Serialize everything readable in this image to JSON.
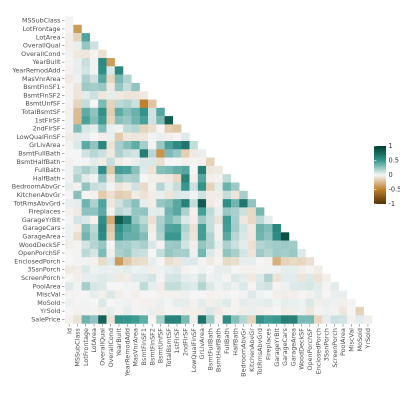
{
  "chart_data": {
    "type": "heatmap",
    "title": "",
    "xlabel": "",
    "ylabel": "",
    "variables": [
      "Id",
      "MSSubClass",
      "LotFrontage",
      "LotArea",
      "OverallQual",
      "OverallCond",
      "YearBuilt",
      "YearRemodAdd",
      "MasVnrArea",
      "BsmtFinSF1",
      "BsmtFinSF2",
      "BsmtUnfSF",
      "TotalBsmtSF",
      "1stFlrSF",
      "2ndFlrSF",
      "LowQualFinSF",
      "GrLivArea",
      "BsmtFullBath",
      "BsmtHalfBath",
      "FullBath",
      "HalfBath",
      "BedroomAbvGr",
      "KitchenAbvGr",
      "TotRmsAbvGrd",
      "Fireplaces",
      "GarageYrBlt",
      "GarageCars",
      "GarageArea",
      "WoodDeckSF",
      "OpenPorchSF",
      "EnclosedPorch",
      "3SsnPorch",
      "ScreenPorch",
      "PoolArea",
      "MiscVal",
      "MoSold",
      "YrSold",
      "SalePrice"
    ],
    "rows_shown": [
      "MSSubClass",
      "LotFrontage",
      "LotArea",
      "OverallQual",
      "OverallCond",
      "YearBuilt",
      "YearRemodAdd",
      "MasVnrArea",
      "BsmtFinSF1",
      "BsmtFinSF2",
      "BsmtUnfSF",
      "TotalBsmtSF",
      "1stFlrSF",
      "2ndFlrSF",
      "LowQualFinSF",
      "GrLivArea",
      "BsmtFullBath",
      "BsmtHalfBath",
      "FullBath",
      "HalfBath",
      "BedroomAbvGr",
      "KitchenAbvGr",
      "TotRmsAbvGrd",
      "Fireplaces",
      "GarageYrBlt",
      "GarageCars",
      "GarageArea",
      "WoodDeckSF",
      "OpenPorchSF",
      "EnclosedPorch",
      "3SsnPorch",
      "ScreenPorch",
      "PoolArea",
      "MiscVal",
      "MoSold",
      "YrSold",
      "SalePrice"
    ],
    "columns_shown": [
      "Id",
      "MSSubClass",
      "LotFrontage",
      "LotArea",
      "OverallQual",
      "OverallCond",
      "YearBuilt",
      "YearRemodAdd",
      "MasVnrArea",
      "BsmtFinSF1",
      "BsmtFinSF2",
      "BsmtUnfSF",
      "TotalBsmtSF",
      "1stFlrSF",
      "2ndFlrSF",
      "LowQualFinSF",
      "GrLivArea",
      "BsmtFullBath",
      "BsmtHalfBath",
      "FullBath",
      "HalfBath",
      "BedroomAbvGr",
      "KitchenAbvGr",
      "TotRmsAbvGrd",
      "Fireplaces",
      "GarageYrBlt",
      "GarageCars",
      "GarageArea",
      "WoodDeckSF",
      "OpenPorchSF",
      "EnclosedPorch",
      "3SsnPorch",
      "ScreenPorch",
      "PoolArea",
      "MiscVal",
      "MoSold",
      "YrSold"
    ],
    "value_range": [
      -1,
      1
    ],
    "legend": {
      "position": "right",
      "ticks": [
        "-1",
        "-0.5",
        "0",
        "0.5",
        "1"
      ]
    },
    "colors": {
      "neg1": "#543005",
      "neg05": "#bf812d",
      "zero": "#f5f5f5",
      "pos05": "#35978f",
      "pos1": "#003c30",
      "background": "#ffffff"
    },
    "grid": false,
    "correlations": [
      [
        -0.01
      ],
      [
        -0.01,
        -0.39
      ],
      [
        -0.03,
        -0.14,
        0.43
      ],
      [
        -0.03,
        0.03,
        0.25,
        0.11
      ],
      [
        0.01,
        -0.06,
        -0.06,
        -0.01,
        -0.09
      ],
      [
        -0.01,
        0.03,
        0.12,
        0.01,
        0.57,
        -0.38
      ],
      [
        -0.02,
        0.04,
        0.09,
        0.01,
        0.55,
        0.07,
        0.59
      ],
      [
        -0.05,
        0.02,
        0.19,
        0.1,
        0.41,
        -0.13,
        0.32,
        0.18
      ],
      [
        -0.01,
        -0.07,
        0.23,
        0.21,
        0.24,
        -0.05,
        0.25,
        0.13,
        0.26
      ],
      [
        -0.01,
        -0.07,
        0.05,
        0.11,
        -0.06,
        0.04,
        -0.05,
        -0.07,
        -0.07,
        -0.05
      ],
      [
        -0.01,
        -0.14,
        0.13,
        -0.0,
        0.31,
        -0.14,
        0.15,
        0.18,
        0.11,
        -0.5,
        -0.21
      ],
      [
        -0.02,
        -0.24,
        0.39,
        0.26,
        0.54,
        -0.17,
        0.39,
        0.29,
        0.36,
        0.52,
        0.1,
        0.42
      ],
      [
        0.01,
        -0.25,
        0.45,
        0.3,
        0.48,
        -0.14,
        0.28,
        0.24,
        0.34,
        0.45,
        0.1,
        0.32,
        0.82
      ],
      [
        0.01,
        0.31,
        0.08,
        0.05,
        0.3,
        0.03,
        0.01,
        0.14,
        0.17,
        -0.14,
        -0.1,
        0.0,
        -0.17,
        -0.2
      ],
      [
        -0.04,
        0.05,
        0.04,
        0.0,
        -0.03,
        0.03,
        -0.18,
        -0.06,
        -0.07,
        -0.06,
        0.01,
        0.03,
        -0.03,
        -0.01,
        0.06
      ],
      [
        0.01,
        0.07,
        0.4,
        0.26,
        0.59,
        -0.08,
        0.2,
        0.29,
        0.39,
        0.21,
        -0.01,
        0.24,
        0.45,
        0.57,
        0.69,
        0.13
      ],
      [
        0.0,
        0.0,
        0.1,
        0.16,
        0.11,
        -0.05,
        0.19,
        0.12,
        0.09,
        0.65,
        0.16,
        -0.42,
        0.31,
        0.24,
        -0.17,
        -0.05,
        0.03
      ],
      [
        -0.02,
        0.0,
        -0.01,
        0.05,
        -0.04,
        0.12,
        -0.04,
        -0.01,
        0.03,
        0.07,
        0.07,
        -0.1,
        0.0,
        0.0,
        -0.02,
        -0.01,
        -0.02,
        -0.15
      ],
      [
        0.01,
        0.13,
        0.2,
        0.13,
        0.55,
        -0.19,
        0.47,
        0.44,
        0.28,
        0.06,
        -0.08,
        0.29,
        0.32,
        0.38,
        0.42,
        -0.0,
        0.63,
        -0.06,
        -0.05
      ],
      [
        0.01,
        0.18,
        0.05,
        0.01,
        0.27,
        -0.06,
        0.24,
        0.18,
        0.2,
        0.0,
        -0.03,
        -0.04,
        -0.05,
        -0.12,
        0.61,
        -0.03,
        0.42,
        -0.03,
        -0.01,
        0.14
      ],
      [
        0.04,
        -0.02,
        0.26,
        0.12,
        0.1,
        0.01,
        -0.07,
        -0.04,
        0.1,
        -0.11,
        -0.02,
        0.17,
        0.05,
        0.13,
        0.5,
        0.11,
        0.52,
        -0.15,
        0.05,
        0.36,
        0.23
      ],
      [
        0.0,
        0.28,
        -0.01,
        -0.02,
        -0.18,
        -0.09,
        -0.17,
        -0.15,
        -0.04,
        -0.08,
        -0.04,
        0.03,
        -0.07,
        0.07,
        0.06,
        0.01,
        0.1,
        -0.04,
        -0.04,
        0.13,
        -0.07,
        0.2
      ],
      [
        0.03,
        0.04,
        0.35,
        0.19,
        0.43,
        -0.06,
        0.1,
        0.19,
        0.28,
        0.04,
        -0.04,
        0.25,
        0.29,
        0.41,
        0.62,
        0.13,
        0.83,
        -0.05,
        -0.02,
        0.55,
        0.34,
        0.68,
        0.26
      ],
      [
        -0.02,
        -0.05,
        0.27,
        0.27,
        0.4,
        -0.02,
        0.15,
        0.11,
        0.25,
        0.26,
        0.05,
        0.05,
        0.34,
        0.41,
        0.19,
        -0.02,
        0.46,
        0.14,
        0.03,
        0.24,
        0.2,
        0.11,
        -0.12,
        0.33
      ],
      [
        0.0,
        0.09,
        0.07,
        -0.02,
        0.55,
        -0.32,
        0.83,
        0.64,
        0.25,
        0.15,
        -0.09,
        0.19,
        0.32,
        0.23,
        0.07,
        -0.04,
        0.23,
        0.12,
        -0.08,
        0.48,
        0.2,
        -0.06,
        -0.12,
        0.15,
        0.05
      ],
      [
        0.02,
        -0.04,
        0.29,
        0.15,
        0.6,
        -0.19,
        0.54,
        0.42,
        0.36,
        0.22,
        -0.04,
        0.21,
        0.43,
        0.44,
        0.18,
        -0.09,
        0.47,
        0.13,
        -0.02,
        0.47,
        0.22,
        0.09,
        -0.05,
        0.36,
        0.3,
        0.59
      ],
      [
        0.02,
        -0.1,
        0.34,
        0.18,
        0.56,
        -0.15,
        0.48,
        0.37,
        0.37,
        0.3,
        -0.02,
        0.18,
        0.49,
        0.49,
        0.14,
        -0.07,
        0.47,
        0.18,
        -0.02,
        0.41,
        0.16,
        0.07,
        -0.06,
        0.34,
        0.27,
        0.56,
        0.88
      ],
      [
        -0.03,
        -0.01,
        0.09,
        0.17,
        0.24,
        -0.0,
        0.22,
        0.21,
        0.16,
        0.2,
        0.07,
        -0.01,
        0.23,
        0.24,
        0.09,
        -0.03,
        0.25,
        0.18,
        0.04,
        0.19,
        0.11,
        0.05,
        -0.09,
        0.17,
        0.2,
        0.22,
        0.23,
        0.22
      ],
      [
        -0.0,
        -0.01,
        0.15,
        0.08,
        0.31,
        -0.03,
        0.19,
        0.23,
        0.13,
        0.11,
        0.0,
        0.13,
        0.25,
        0.21,
        0.21,
        0.02,
        0.33,
        0.07,
        -0.02,
        0.26,
        0.2,
        0.09,
        -0.07,
        0.23,
        0.17,
        0.23,
        0.21,
        0.24,
        0.06
      ],
      [
        0.0,
        -0.01,
        0.01,
        -0.02,
        -0.11,
        0.07,
        -0.39,
        -0.19,
        -0.11,
        -0.1,
        0.04,
        -0.0,
        -0.1,
        -0.07,
        0.06,
        0.06,
        0.01,
        -0.05,
        -0.01,
        -0.12,
        -0.1,
        0.04,
        0.04,
        0.0,
        -0.02,
        -0.3,
        -0.15,
        -0.12,
        -0.13,
        -0.09
      ],
      [
        -0.05,
        -0.04,
        0.07,
        0.02,
        0.03,
        0.03,
        0.03,
        0.05,
        0.02,
        0.03,
        -0.03,
        0.02,
        0.04,
        0.06,
        -0.02,
        -0.0,
        0.02,
        -0.0,
        0.04,
        0.04,
        -0.0,
        -0.02,
        -0.02,
        -0.01,
        0.01,
        0.02,
        0.04,
        0.04,
        -0.03,
        -0.01,
        -0.04
      ],
      [
        0.0,
        -0.03,
        0.04,
        0.04,
        0.06,
        0.05,
        -0.05,
        -0.04,
        0.06,
        0.06,
        0.09,
        -0.01,
        0.08,
        0.09,
        0.04,
        0.03,
        0.1,
        0.02,
        0.03,
        -0.01,
        0.07,
        0.04,
        -0.05,
        0.06,
        0.18,
        -0.08,
        0.05,
        0.05,
        -0.07,
        0.07,
        -0.08,
        -0.03
      ],
      [
        0.06,
        0.01,
        0.21,
        0.08,
        0.07,
        -0.0,
        0.0,
        0.01,
        0.01,
        0.14,
        0.04,
        -0.04,
        0.13,
        0.13,
        0.08,
        0.06,
        0.17,
        0.07,
        0.02,
        0.05,
        0.02,
        0.07,
        -0.01,
        0.08,
        0.1,
        -0.01,
        0.02,
        0.06,
        0.07,
        0.08,
        0.05,
        -0.01,
        0.05
      ],
      [
        -0.01,
        -0.01,
        0.0,
        0.04,
        -0.03,
        0.07,
        -0.03,
        -0.01,
        -0.03,
        0.0,
        0.0,
        -0.02,
        -0.02,
        -0.02,
        0.02,
        -0.0,
        -0.0,
        -0.02,
        -0.01,
        -0.01,
        0.0,
        0.01,
        0.06,
        0.02,
        0.0,
        -0.03,
        -0.04,
        -0.03,
        -0.01,
        -0.02,
        0.04,
        0.0,
        0.03,
        0.03
      ],
      [
        0.02,
        -0.01,
        0.01,
        0.0,
        0.07,
        -0.0,
        0.01,
        0.02,
        -0.01,
        -0.02,
        -0.02,
        0.03,
        0.01,
        0.04,
        0.04,
        -0.02,
        0.05,
        -0.03,
        0.03,
        0.06,
        -0.01,
        0.05,
        0.03,
        0.04,
        0.05,
        0.01,
        0.04,
        0.03,
        0.02,
        0.07,
        -0.03,
        0.03,
        0.02,
        -0.03,
        -0.01
      ],
      [
        0.0,
        -0.02,
        0.01,
        -0.01,
        -0.03,
        0.04,
        -0.01,
        0.04,
        -0.01,
        0.01,
        0.03,
        -0.04,
        -0.01,
        -0.01,
        -0.03,
        -0.03,
        -0.04,
        0.07,
        -0.05,
        -0.02,
        -0.01,
        -0.04,
        0.03,
        -0.03,
        -0.02,
        -0.0,
        -0.04,
        -0.03,
        0.02,
        -0.06,
        -0.01,
        0.02,
        0.01,
        -0.06,
        0.0,
        -0.15
      ],
      [
        -0.02,
        -0.08,
        0.35,
        0.26,
        0.79,
        -0.08,
        0.52,
        0.51,
        0.48,
        0.39,
        -0.01,
        0.21,
        0.61,
        0.61,
        0.32,
        -0.03,
        0.71,
        0.23,
        -0.02,
        0.56,
        0.28,
        0.17,
        -0.14,
        0.53,
        0.47,
        0.49,
        0.64,
        0.62,
        0.32,
        0.32,
        -0.13,
        0.04,
        0.11,
        0.09,
        -0.02,
        0.05,
        -0.03
      ]
    ]
  }
}
